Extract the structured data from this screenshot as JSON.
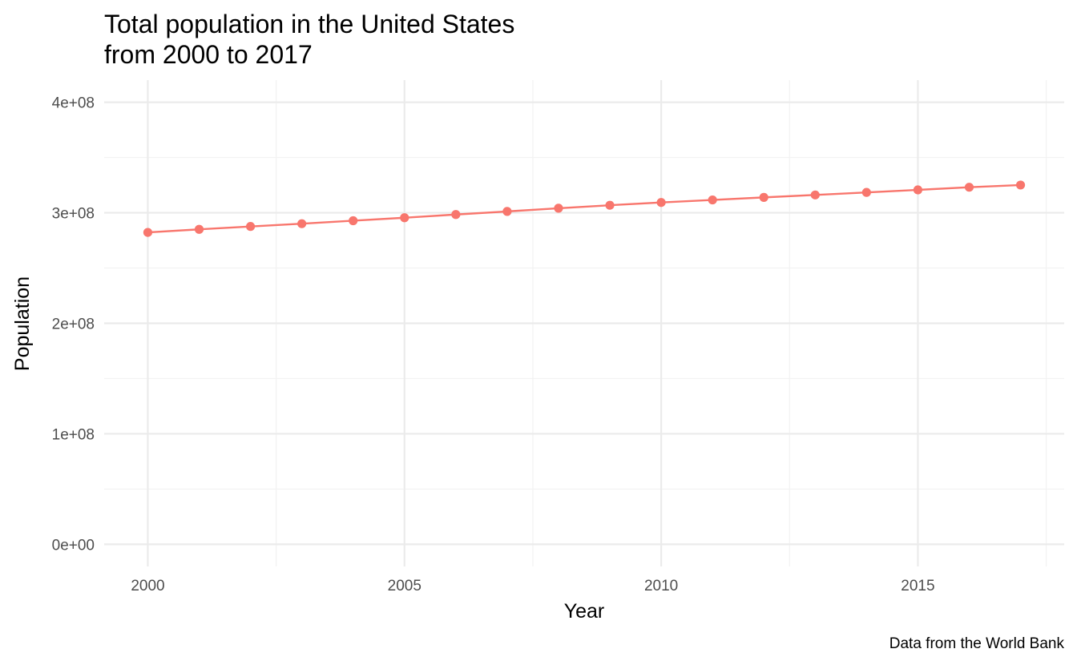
{
  "chart_data": {
    "type": "line",
    "title": [
      "Total population in the United States",
      "from 2000 to 2017"
    ],
    "caption": "Data from the World Bank",
    "xlabel": "Year",
    "ylabel": "Population",
    "xlim": [
      1999.15,
      2017.85
    ],
    "ylim": [
      -20000000,
      420000000
    ],
    "x_ticks": [
      {
        "value": 2000,
        "label": "2000"
      },
      {
        "value": 2005,
        "label": "2005"
      },
      {
        "value": 2010,
        "label": "2010"
      },
      {
        "value": 2015,
        "label": "2015"
      }
    ],
    "x_minor": [
      2002.5,
      2007.5,
      2012.5,
      2017.5
    ],
    "y_ticks": [
      {
        "value": 0,
        "label": "0e+00"
      },
      {
        "value": 100000000,
        "label": "1e+08"
      },
      {
        "value": 200000000,
        "label": "2e+08"
      },
      {
        "value": 300000000,
        "label": "3e+08"
      },
      {
        "value": 400000000,
        "label": "4e+08"
      }
    ],
    "y_minor": [
      50000000,
      150000000,
      250000000,
      350000000
    ],
    "grid": true,
    "legend": "none",
    "color": "#F8766D",
    "series": [
      {
        "x": [
          2000,
          2001,
          2002,
          2003,
          2004,
          2005,
          2006,
          2007,
          2008,
          2009,
          2010,
          2011,
          2012,
          2013,
          2014,
          2015,
          2016,
          2017
        ],
        "values": [
          282200000,
          285000000,
          287600000,
          290100000,
          292800000,
          295500000,
          298400000,
          301200000,
          304100000,
          306800000,
          309300000,
          311600000,
          313900000,
          316100000,
          318400000,
          320700000,
          323100000,
          325100000
        ]
      }
    ]
  }
}
